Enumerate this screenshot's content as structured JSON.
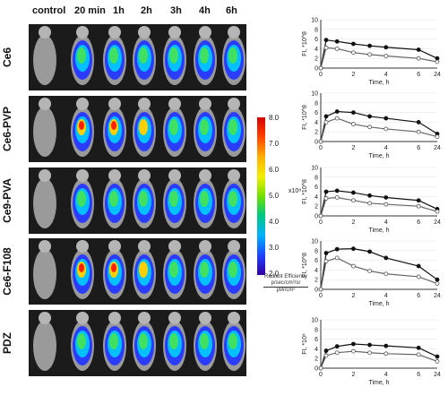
{
  "columns": [
    "control",
    "20 min",
    "1h",
    "2h",
    "3h",
    "4h",
    "6h"
  ],
  "rows": [
    "Ce6",
    "Ce6-PVP",
    "Ce9-PVA",
    "Ce6-F108",
    "PDZ"
  ],
  "colorbar": {
    "ticks": [
      "8.0",
      "7.0",
      "6.0",
      "5.0",
      "4.0",
      "3.0",
      "2.0"
    ],
    "unit": "x10⁸",
    "label_line1": "Radiant Efficiency",
    "label_line2": "p/sec/cm²/sr",
    "label_line3": "μW/cm²"
  },
  "chart_data": [
    {
      "type": "line",
      "ylabel": "FI, *10^8",
      "xlabel": "Time, h",
      "x": [
        0,
        0.33,
        1,
        2,
        3,
        4,
        6,
        24
      ],
      "x_ticks": [
        "0",
        "2",
        "4",
        "6",
        "24"
      ],
      "ylim": [
        0,
        10
      ],
      "y_ticks": [
        "0",
        "2",
        "4",
        "6",
        "8",
        "10"
      ],
      "series": [
        {
          "values": [
            0,
            5.8,
            5.5,
            5.0,
            4.6,
            4.3,
            3.8,
            2.0
          ]
        },
        {
          "values": [
            0,
            4.2,
            4.0,
            3.2,
            2.8,
            2.5,
            2.0,
            1.3
          ]
        }
      ]
    },
    {
      "type": "line",
      "ylabel": "FI, *10^8",
      "xlabel": "Time, h",
      "x": [
        0,
        0.33,
        1,
        2,
        3,
        4,
        6,
        24
      ],
      "x_ticks": [
        "0",
        "2",
        "4",
        "6",
        "24"
      ],
      "ylim": [
        0,
        10
      ],
      "y_ticks": [
        "0",
        "2",
        "4",
        "6",
        "8",
        "10"
      ],
      "series": [
        {
          "values": [
            0,
            5.2,
            6.2,
            6.0,
            5.2,
            4.8,
            4.0,
            1.6
          ]
        },
        {
          "values": [
            0,
            4.0,
            4.8,
            3.6,
            3.0,
            2.6,
            2.0,
            1.0
          ]
        }
      ]
    },
    {
      "type": "line",
      "ylabel": "FI, *10^8",
      "xlabel": "Time, h",
      "x": [
        0,
        0.33,
        1,
        2,
        3,
        4,
        6,
        24
      ],
      "x_ticks": [
        "0",
        "2",
        "4",
        "6",
        "24"
      ],
      "ylim": [
        0,
        10
      ],
      "y_ticks": [
        "0",
        "2",
        "4",
        "6",
        "8",
        "10"
      ],
      "series": [
        {
          "values": [
            0,
            5.0,
            5.2,
            4.8,
            4.2,
            3.8,
            3.2,
            1.4
          ]
        },
        {
          "values": [
            0,
            3.6,
            3.8,
            3.2,
            2.6,
            2.4,
            2.0,
            0.9
          ]
        }
      ]
    },
    {
      "type": "line",
      "ylabel": "FI, *10^8",
      "xlabel": "Time, h",
      "x": [
        0,
        0.33,
        1,
        2,
        3,
        4,
        6,
        24
      ],
      "x_ticks": [
        "0",
        "2",
        "4",
        "6",
        "24"
      ],
      "ylim": [
        0,
        10
      ],
      "y_ticks": [
        "0",
        "2",
        "4",
        "6",
        "8",
        "10"
      ],
      "series": [
        {
          "values": [
            0,
            7.5,
            8.3,
            8.4,
            7.8,
            6.5,
            4.8,
            2.0
          ]
        },
        {
          "values": [
            0,
            5.8,
            6.5,
            4.8,
            3.8,
            3.2,
            2.6,
            1.2
          ]
        }
      ]
    },
    {
      "type": "line",
      "ylabel": "FI, *10⁸",
      "xlabel": "Time, h",
      "x": [
        0,
        0.33,
        1,
        2,
        3,
        4,
        6,
        24
      ],
      "x_ticks": [
        "0",
        "2",
        "4",
        "6",
        "24"
      ],
      "ylim": [
        0,
        10
      ],
      "y_ticks": [
        "0",
        "2",
        "4",
        "6",
        "8",
        "10"
      ],
      "series": [
        {
          "values": [
            0,
            3.6,
            4.5,
            5.0,
            4.8,
            4.6,
            4.2,
            2.4
          ]
        },
        {
          "values": [
            0,
            2.6,
            3.2,
            3.5,
            3.2,
            3.0,
            2.8,
            1.4
          ]
        }
      ]
    }
  ]
}
